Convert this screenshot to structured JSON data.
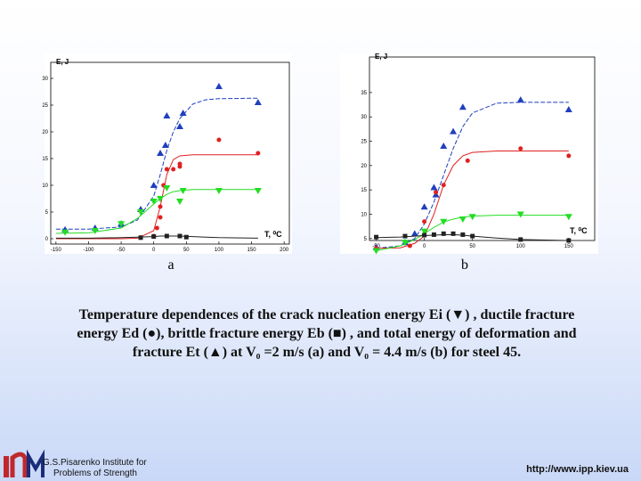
{
  "chart_data": [
    {
      "type": "scatter",
      "label": "a",
      "ylabel": "E, J",
      "xlabel": "T, ⁰C",
      "xlim": [
        -158,
        208
      ],
      "xticks": [
        -150,
        -100,
        -50,
        0,
        50,
        100,
        150,
        200
      ],
      "ylim": [
        -1,
        33
      ],
      "yticks": [
        0,
        5,
        10,
        15,
        20,
        25,
        30
      ],
      "fit_x": [
        -150,
        -100,
        -50,
        -25,
        0,
        10,
        20,
        30,
        40,
        60,
        80,
        100,
        160
      ],
      "series": [
        {
          "color": "#1f3fbf",
          "marker": "triangle",
          "dash": true,
          "x": [
            -136,
            -90,
            -50,
            -20,
            0,
            10,
            18,
            20,
            40,
            45,
            100,
            160
          ],
          "values": [
            1.7,
            2,
            2.8,
            5.5,
            10,
            16,
            17.5,
            23,
            21,
            23.5,
            28.5,
            25.5
          ],
          "fit": [
            1.8,
            1.8,
            2.2,
            3.5,
            8,
            12,
            16.5,
            20,
            22.5,
            25.2,
            26,
            26.2,
            26.3
          ]
        },
        {
          "color": "#e02020",
          "marker": "circle",
          "dash": false,
          "x": [
            -20,
            0,
            5,
            10,
            10,
            15,
            20,
            30,
            40,
            40,
            100,
            160
          ],
          "values": [
            0.2,
            0.5,
            2,
            4,
            6,
            10,
            13,
            13,
            14,
            13.5,
            18.5,
            16
          ],
          "fit": [
            0,
            0,
            0,
            0.1,
            1.5,
            6,
            12,
            14.8,
            15.5,
            15.7,
            15.7,
            15.7,
            15.7
          ]
        },
        {
          "color": "#22dd22",
          "marker": "down-triangle",
          "dash": false,
          "x": [
            -136,
            -90,
            -50,
            -20,
            0,
            10,
            20,
            40,
            45,
            100,
            160
          ],
          "values": [
            1.2,
            1.5,
            2.8,
            5,
            7,
            7.5,
            9.5,
            7,
            9,
            9,
            9
          ],
          "fit": [
            1,
            1.1,
            2,
            3.8,
            6.5,
            7.5,
            8.3,
            8.8,
            9,
            9.2,
            9.2,
            9.2,
            9.2
          ]
        },
        {
          "color": "#222222",
          "marker": "square",
          "dash": false,
          "x": [
            -20,
            0,
            20,
            40,
            50
          ],
          "values": [
            0.2,
            0.4,
            0.5,
            0.5,
            0.3
          ],
          "fit": [
            0.1,
            0.1,
            0.2,
            0.3,
            0.4,
            0.5,
            0.5,
            0.5,
            0.5,
            0.4,
            0.3,
            0.2,
            0.1
          ]
        }
      ]
    },
    {
      "type": "scatter",
      "label": "b",
      "ylabel": "E, J",
      "xlabel": "T, ⁰C",
      "xlim": [
        -57,
        177
      ],
      "xticks": [
        -50,
        0,
        50,
        100,
        150
      ],
      "ylim": [
        4.6,
        42.3
      ],
      "yticks": [
        5,
        10,
        15,
        20,
        25,
        30,
        35
      ],
      "fit_x": [
        -50,
        -25,
        -10,
        0,
        10,
        20,
        30,
        40,
        50,
        75,
        100,
        150
      ],
      "series": [
        {
          "color": "#1f3fbf",
          "marker": "triangle",
          "dash": true,
          "x": [
            -50,
            -20,
            -10,
            0,
            10,
            12,
            20,
            30,
            40,
            100,
            150
          ],
          "values": [
            3.2,
            4.2,
            6,
            11.5,
            15.5,
            14,
            24,
            27,
            32,
            33.5,
            31.5
          ],
          "fit": [
            3,
            3.5,
            5,
            8,
            12.5,
            18,
            23.5,
            28,
            30.8,
            32.8,
            33,
            33
          ]
        },
        {
          "color": "#e02020",
          "marker": "circle",
          "dash": false,
          "x": [
            -50,
            -15,
            0,
            12,
            20,
            45,
            100,
            150
          ],
          "values": [
            3,
            3.5,
            8.5,
            14.5,
            16,
            21,
            23.5,
            22
          ],
          "fit": [
            3,
            3.1,
            4,
            5.5,
            10,
            16,
            20,
            22,
            22.7,
            23,
            23,
            23
          ]
        },
        {
          "color": "#22dd22",
          "marker": "down-triangle",
          "dash": false,
          "x": [
            -50,
            -20,
            0,
            20,
            40,
            50,
            100,
            150
          ],
          "values": [
            2.5,
            4.2,
            6.5,
            8.5,
            9,
            9.5,
            10,
            9.5
          ],
          "fit": [
            2.5,
            3.5,
            4.8,
            6,
            7.3,
            8.4,
            9,
            9.4,
            9.6,
            9.8,
            9.8,
            9.8
          ]
        },
        {
          "color": "#222222",
          "marker": "square",
          "dash": false,
          "x": [
            -50,
            -20,
            0,
            10,
            20,
            30,
            40,
            50,
            100,
            150
          ],
          "values": [
            5.3,
            5.5,
            5.7,
            5.8,
            6,
            6,
            5.8,
            5.5,
            4.8,
            4.6
          ],
          "fit": [
            5.2,
            5.3,
            5.5,
            5.6,
            5.7,
            5.8,
            5.8,
            5.7,
            5.5,
            5.1,
            4.8,
            4.6
          ]
        }
      ]
    }
  ],
  "caption": "Temperature dependences of the crack nucleation energy Ei (▼) , ductile fracture energy Ed (●), brittle fracture energy Eb (■) , and total energy of deformation and fracture Et (▲) at V₀ =2 m/s (a) and V₀ = 4.4 m/s (b) for steel 45.",
  "institute": [
    "G.S.Pisarenko Institute for",
    "Problems of Strength"
  ],
  "url": "http://www.ipp.kiev.ua"
}
